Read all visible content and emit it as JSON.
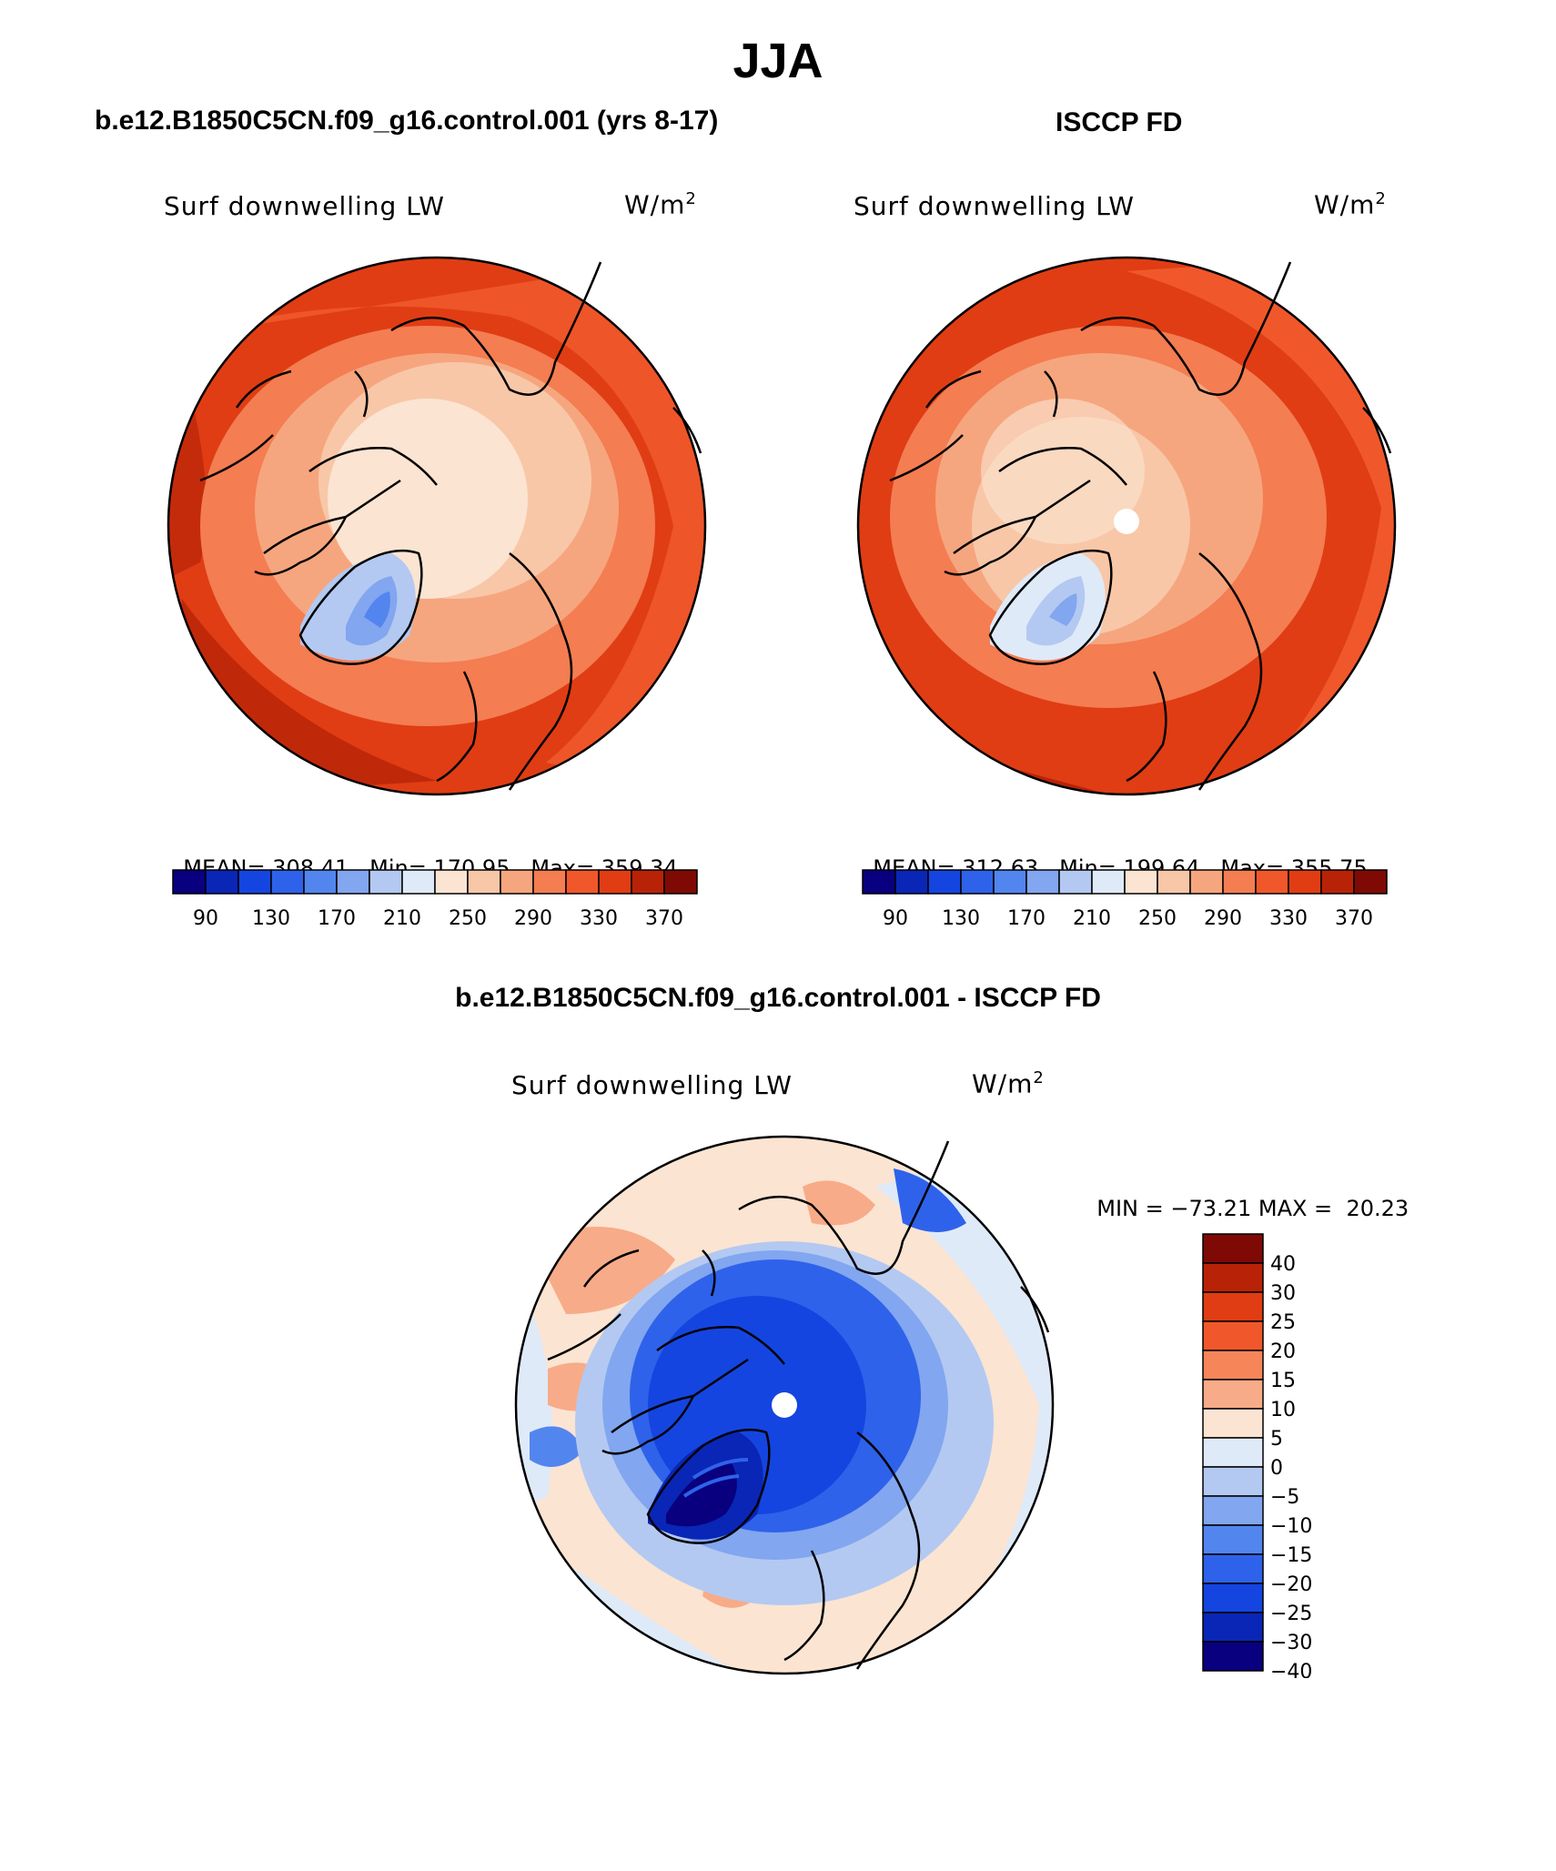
{
  "main_title": "JJA",
  "panels": {
    "model": {
      "title": "b.e12.B1850C5CN.f09_g16.control.001 (yrs 8-17)",
      "variable": "Surf downwelling LW",
      "units": "W/m",
      "units_exp": "2",
      "stats": {
        "mean_label": "MEAN=",
        "mean": "308.41",
        "min_label": "Min=",
        "min": "170.95",
        "max_label": "Max=",
        "max": "359.34"
      }
    },
    "obs": {
      "title": "ISCCP FD",
      "variable": "Surf downwelling LW",
      "units": "W/m",
      "units_exp": "2",
      "stats": {
        "mean_label": "MEAN=",
        "mean": "312.63",
        "min_label": "Min=",
        "min": "199.64",
        "max_label": "Max=",
        "max": "355.75"
      }
    },
    "diff": {
      "title": "b.e12.B1850C5CN.f09_g16.control.001 - ISCCP FD",
      "variable": "Surf downwelling LW",
      "units": "W/m",
      "units_exp": "2",
      "stats": {
        "min_label": "MIN =",
        "min": "−73.21",
        "max_label": "MAX =",
        "max": "20.23"
      }
    }
  },
  "colorbars": {
    "absolute": {
      "colors": [
        "#08007f",
        "#0a26b6",
        "#1545e0",
        "#2f62ea",
        "#5385ef",
        "#82a6ef",
        "#b3c9f2",
        "#dfeaf8",
        "#fbe4d2",
        "#f8c7a8",
        "#f6a67e",
        "#f47d52",
        "#f0582b",
        "#e03d14",
        "#b82307",
        "#7f0a05"
      ],
      "tick_labels": [
        "90",
        "130",
        "170",
        "210",
        "250",
        "290",
        "330",
        "370"
      ]
    },
    "difference": {
      "colors": [
        "#7f0a05",
        "#b82307",
        "#e03d14",
        "#f0582b",
        "#f6855a",
        "#f8ab88",
        "#fbe4d2",
        "#dfeaf8",
        "#b3c9f2",
        "#82a6ef",
        "#5385ef",
        "#2f62ea",
        "#1545e0",
        "#0a26b6",
        "#08007f"
      ],
      "tick_labels": [
        "40",
        "30",
        "25",
        "20",
        "15",
        "10",
        "5",
        "0",
        "−5",
        "−10",
        "−15",
        "−20",
        "−25",
        "−30",
        "−40"
      ]
    }
  }
}
